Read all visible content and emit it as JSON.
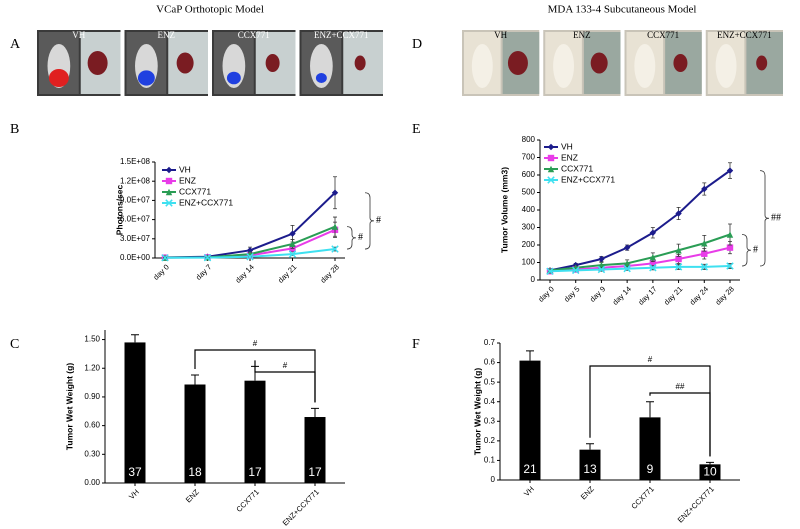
{
  "figure": {
    "left_title": "VCaP Orthotopic Model",
    "right_title": "MDA 133-4 Subcutaneous Model",
    "panel_letters": [
      "A",
      "B",
      "C",
      "D",
      "E",
      "F"
    ],
    "left_photo_labels": [
      "VH",
      "ENZ",
      "CCX771",
      "ENZ+CCX771"
    ],
    "right_photo_labels": [
      "VH",
      "ENZ",
      "CCX771",
      "ENZ+CCX771"
    ]
  },
  "chart_data": [
    {
      "type": "line",
      "y_label": "Photons/sec",
      "categories": [
        "day 0",
        "day 7",
        "day 14",
        "day 21",
        "day 28"
      ],
      "ylim": [
        0,
        150000000
      ],
      "yticks": [
        {
          "value": 0,
          "label": "0.0E+00"
        },
        {
          "value": 30000000,
          "label": "3.0E+07"
        },
        {
          "value": 60000000,
          "label": "6.0E+07"
        },
        {
          "value": 90000000,
          "label": "9.0E+07"
        },
        {
          "value": 120000000,
          "label": "1.2E+08"
        },
        {
          "value": 150000000,
          "label": "1.5E+08"
        }
      ],
      "series": [
        {
          "name": "VH",
          "color": "#1c1c8c",
          "marker": "diamond",
          "values": [
            1000000,
            2000000,
            12000000,
            38000000,
            102000000
          ],
          "errors": [
            500000,
            1000000,
            5000000,
            13000000,
            25000000
          ]
        },
        {
          "name": "ENZ",
          "color": "#e83ce8",
          "marker": "square",
          "values": [
            500000,
            1000000,
            4000000,
            15000000,
            44000000
          ],
          "errors": [
            300000,
            500000,
            2000000,
            5000000,
            12000000
          ]
        },
        {
          "name": "CCX771",
          "color": "#2a9d55",
          "marker": "triangle",
          "values": [
            500000,
            1000000,
            6000000,
            22000000,
            49000000
          ],
          "errors": [
            300000,
            500000,
            3000000,
            7000000,
            15000000
          ]
        },
        {
          "name": "ENZ+CCX771",
          "color": "#3ee0f0",
          "marker": "cross",
          "values": [
            300000,
            500000,
            2000000,
            6000000,
            14000000
          ],
          "errors": [
            200000,
            300000,
            1000000,
            2000000,
            3000000
          ]
        }
      ],
      "annotations": [
        "#",
        "#"
      ]
    },
    {
      "type": "bar",
      "y_label": "Tumor Wet Weight (g)",
      "categories": [
        "VH",
        "ENZ",
        "CCX771",
        "ENZ+CCX771"
      ],
      "values": [
        1.47,
        1.03,
        1.07,
        0.69
      ],
      "errors": [
        0.08,
        0.1,
        0.15,
        0.09
      ],
      "n_labels": [
        37,
        18,
        17,
        17
      ],
      "color": "#000000",
      "ylim": [
        0,
        1.6
      ],
      "yticks": [
        {
          "value": 0,
          "label": "0.00"
        },
        {
          "value": 0.3,
          "label": "0.30"
        },
        {
          "value": 0.6,
          "label": "0.60"
        },
        {
          "value": 0.9,
          "label": "0.90"
        },
        {
          "value": 1.2,
          "label": "1.20"
        },
        {
          "value": 1.5,
          "label": "1.50"
        }
      ],
      "annotations": [
        "#",
        "#"
      ]
    },
    {
      "type": "line",
      "y_label": "Tumor Volume (mm3)",
      "categories": [
        "day 0",
        "day 5",
        "day 9",
        "day 14",
        "day 17",
        "day 21",
        "day 24",
        "day 28"
      ],
      "ylim": [
        0,
        800
      ],
      "yticks": [
        0,
        100,
        200,
        300,
        400,
        500,
        600,
        700,
        800
      ],
      "series": [
        {
          "name": "VH",
          "color": "#1c1c8c",
          "marker": "diamond",
          "values": [
            55,
            85,
            120,
            185,
            270,
            380,
            520,
            625
          ],
          "errors": [
            10,
            10,
            15,
            15,
            30,
            35,
            35,
            45
          ]
        },
        {
          "name": "ENZ",
          "color": "#e83ce8",
          "marker": "square",
          "values": [
            50,
            60,
            70,
            80,
            95,
            120,
            150,
            185
          ],
          "errors": [
            8,
            10,
            10,
            15,
            20,
            25,
            30,
            35
          ]
        },
        {
          "name": "CCX771",
          "color": "#2a9d55",
          "marker": "triangle",
          "values": [
            55,
            70,
            85,
            95,
            130,
            170,
            210,
            260
          ],
          "errors": [
            8,
            10,
            15,
            20,
            25,
            35,
            45,
            60
          ]
        },
        {
          "name": "ENZ+CCX771",
          "color": "#3ee0f0",
          "marker": "cross",
          "values": [
            50,
            55,
            60,
            65,
            70,
            75,
            75,
            80
          ],
          "errors": [
            8,
            8,
            10,
            10,
            12,
            15,
            15,
            15
          ]
        }
      ],
      "annotations": [
        "#",
        "##"
      ]
    },
    {
      "type": "bar",
      "y_label": "Tumor Wet Weight (g)",
      "categories": [
        "VH",
        "ENZ",
        "CCX771",
        "ENZ+CCX771"
      ],
      "values": [
        0.61,
        0.155,
        0.32,
        0.08
      ],
      "errors": [
        0.05,
        0.03,
        0.08,
        0.01
      ],
      "n_labels": [
        21,
        13,
        9,
        10
      ],
      "color": "#000000",
      "ylim": [
        0,
        0.7
      ],
      "yticks": [
        0,
        0.1,
        0.2,
        0.3,
        0.4,
        0.5,
        0.6,
        0.7
      ],
      "annotations": [
        "#",
        "##"
      ]
    }
  ]
}
